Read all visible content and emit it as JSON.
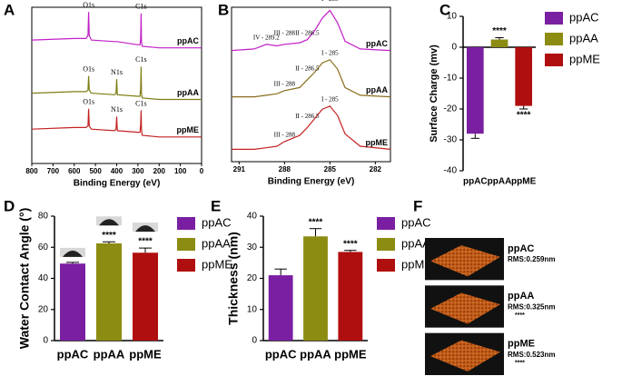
{
  "chart_data": [
    {
      "type": "spectrum",
      "label": "A",
      "xlabel": "Binding Energy (eV)",
      "x": [
        800,
        600,
        545,
        535,
        532,
        529,
        520,
        410,
        403,
        400,
        397,
        300,
        290,
        287,
        285,
        283,
        280,
        200,
        0
      ],
      "xlim": [
        800,
        0
      ],
      "xticks": [
        800,
        700,
        600,
        500,
        400,
        300,
        200,
        100,
        0
      ],
      "ylim": [
        0,
        100
      ],
      "series": [
        {
          "name": "ppAC",
          "color": "#c21fc7",
          "values": [
            79,
            80,
            80,
            82,
            97,
            82,
            79,
            78,
            78,
            78,
            78,
            76,
            76,
            80,
            96,
            78,
            75,
            74,
            74
          ],
          "peaks": [
            {
              "label": "O1s",
              "x": 532
            },
            {
              "label": "C1s",
              "x": 285
            }
          ]
        },
        {
          "name": "ppAA",
          "color": "#7d7d14",
          "values": [
            45,
            46,
            46,
            47,
            56,
            47,
            45,
            44,
            45,
            54,
            44,
            43,
            43,
            48,
            62,
            45,
            42,
            41,
            41
          ],
          "peaks": [
            {
              "label": "O1s",
              "x": 532
            },
            {
              "label": "N1s",
              "x": 400
            },
            {
              "label": "C1s",
              "x": 285
            }
          ]
        },
        {
          "name": "ppME",
          "color": "#c42222",
          "values": [
            22,
            23,
            23,
            24,
            35,
            24,
            22,
            21,
            22,
            30,
            21,
            20,
            20,
            25,
            34,
            22,
            18,
            17,
            17
          ],
          "peaks": [
            {
              "label": "O1s",
              "x": 532
            },
            {
              "label": "N1s",
              "x": 400
            },
            {
              "label": "C1s",
              "x": 285
            }
          ]
        }
      ]
    },
    {
      "type": "spectrum",
      "label": "B",
      "xlabel": "Binding Energy (eV)",
      "x": [
        291.5,
        290,
        289.2,
        288.5,
        288,
        287,
        286.5,
        286,
        285.5,
        285,
        284.5,
        284,
        283,
        281
      ],
      "xlim": [
        291.5,
        281
      ],
      "xticks": [
        291,
        288,
        285,
        282
      ],
      "ylim": [
        0,
        100
      ],
      "series": [
        {
          "name": "ppAC",
          "color": "#c21fc7",
          "values": [
            72,
            73,
            76,
            75,
            76,
            77,
            79,
            85,
            93,
            98,
            90,
            78,
            73,
            72
          ],
          "peaks": [
            {
              "label": "IV - 289.2",
              "x": 289.2
            },
            {
              "label": "III - 288",
              "x": 288
            },
            {
              "label": "II - 286.5",
              "x": 286.5
            },
            {
              "label": "I - 285",
              "x": 285
            }
          ]
        },
        {
          "name": "ppAA",
          "color": "#8a6d1c",
          "values": [
            42,
            42,
            43,
            44,
            46,
            48,
            53,
            58,
            64,
            66,
            60,
            48,
            43,
            42
          ],
          "peaks": [
            {
              "label": "III - 288",
              "x": 288
            },
            {
              "label": "II - 286.5",
              "x": 286.5
            },
            {
              "label": "I - 285",
              "x": 285
            }
          ]
        },
        {
          "name": "ppME",
          "color": "#c42222",
          "values": [
            8,
            8,
            9,
            10,
            13,
            17,
            22,
            28,
            34,
            36,
            30,
            18,
            10,
            8
          ],
          "peaks": [
            {
              "label": "III - 288",
              "x": 288
            },
            {
              "label": "II - 286.5",
              "x": 286.5
            },
            {
              "label": "I - 285",
              "x": 285
            }
          ]
        }
      ]
    },
    {
      "type": "bar",
      "label": "C",
      "ylabel": "Surface Charge (mv)",
      "categories": [
        "ppAC",
        "ppAA",
        "ppME"
      ],
      "values": [
        -28,
        2.5,
        -19
      ],
      "errors": [
        1.5,
        0.6,
        1
      ],
      "significance": [
        null,
        "****",
        "****"
      ],
      "colors": [
        "#7b1fa2",
        "#8c8c12",
        "#b00f0f"
      ],
      "ylim": [
        -40,
        10
      ],
      "yticks": [
        -40,
        -30,
        -20,
        -10,
        0,
        10
      ]
    },
    {
      "type": "bar",
      "label": "D",
      "ylabel": "Water Contact  Angle (°)",
      "categories": [
        "ppAC",
        "ppAA",
        "ppME"
      ],
      "values": [
        49.5,
        62.5,
        56.5
      ],
      "errors": [
        0.8,
        1,
        3
      ],
      "significance": [
        null,
        "****",
        "****"
      ],
      "colors": [
        "#7b1fa2",
        "#8c8c12",
        "#b00f0f"
      ],
      "ylim": [
        0,
        80
      ],
      "yticks": [
        0,
        20,
        40,
        60,
        80
      ]
    },
    {
      "type": "bar",
      "label": "E",
      "ylabel": "Thickness (nm)",
      "categories": [
        "ppAC",
        "ppAA",
        "ppME"
      ],
      "values": [
        21,
        33.5,
        28.5
      ],
      "errors": [
        2,
        2.5,
        0.5
      ],
      "significance": [
        null,
        "****",
        "****"
      ],
      "colors": [
        "#7b1fa2",
        "#8c8c12",
        "#b00f0f"
      ],
      "ylim": [
        0,
        40
      ],
      "yticks": [
        0,
        10,
        20,
        30,
        40
      ]
    },
    {
      "type": "afm",
      "label": "F",
      "items": [
        {
          "name": "ppAC",
          "rms": "RMS:0.259nm",
          "significance": null
        },
        {
          "name": "ppAA",
          "rms": "RMS:0.325nm",
          "significance": "****"
        },
        {
          "name": "ppME",
          "rms": "RMS:0.523nm",
          "significance": "****"
        }
      ]
    }
  ]
}
